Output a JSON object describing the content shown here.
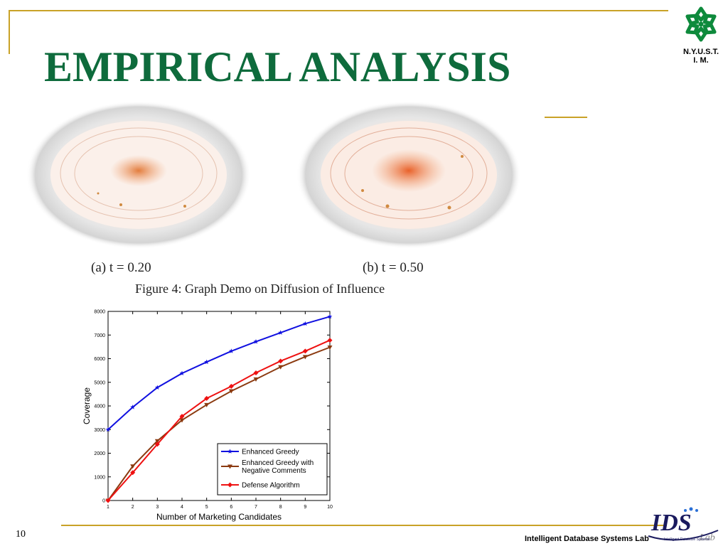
{
  "slide": {
    "title": "EMPIRICAL ANALYSIS",
    "logo_text_line1": "N.Y.U.S.T.",
    "logo_text_line2": "I. M.",
    "slide_number": "10",
    "footer_lab": "Intelligent Database Systems Lab",
    "ids_logo_text": "IDS",
    "ids_logo_lab": "Lab",
    "ids_logo_tagline": "Intelligent Database Systems",
    "colors": {
      "title": "#0e6b3c",
      "rule": "#c9a227",
      "logo": "#0e8a3c"
    }
  },
  "figure4": {
    "subcaption_a": "(a) t = 0.20",
    "subcaption_b": "(b) t = 0.50",
    "caption": "Figure 4:  Graph Demo on Diffusion of Influence"
  },
  "chart_data": {
    "type": "line",
    "xlabel": "Number of Marketing Candidates",
    "ylabel": "Coverage",
    "xlim": [
      1,
      10
    ],
    "ylim": [
      0,
      8000
    ],
    "x": [
      1,
      2,
      3,
      4,
      5,
      6,
      7,
      8,
      9,
      10
    ],
    "x_ticks": [
      "1",
      "2",
      "3",
      "4",
      "5",
      "6",
      "7",
      "8",
      "9",
      "10"
    ],
    "y_ticks": [
      "0",
      "1000",
      "2000",
      "3000",
      "4000",
      "5000",
      "6000",
      "7000",
      "8000"
    ],
    "legend_position": "bottom-right",
    "series": [
      {
        "name": "Enhanced Greedy",
        "color": "#1010e0",
        "marker": "star",
        "values": [
          3000,
          3950,
          4780,
          5380,
          5860,
          6320,
          6720,
          7100,
          7480,
          7780
        ]
      },
      {
        "name": "Enhanced Greedy with Negative Comments",
        "color": "#8b3a10",
        "marker": "triangle-down",
        "values": [
          0,
          1450,
          2520,
          3400,
          4050,
          4630,
          5130,
          5650,
          6080,
          6480
        ]
      },
      {
        "name": "Defense Algorithm",
        "color": "#ee1111",
        "marker": "diamond",
        "values": [
          0,
          1180,
          2380,
          3560,
          4320,
          4830,
          5400,
          5900,
          6320,
          6780
        ]
      }
    ],
    "legend_line1_series2": "Enhanced Greedy with",
    "legend_line2_series2": "Negative Comments"
  }
}
